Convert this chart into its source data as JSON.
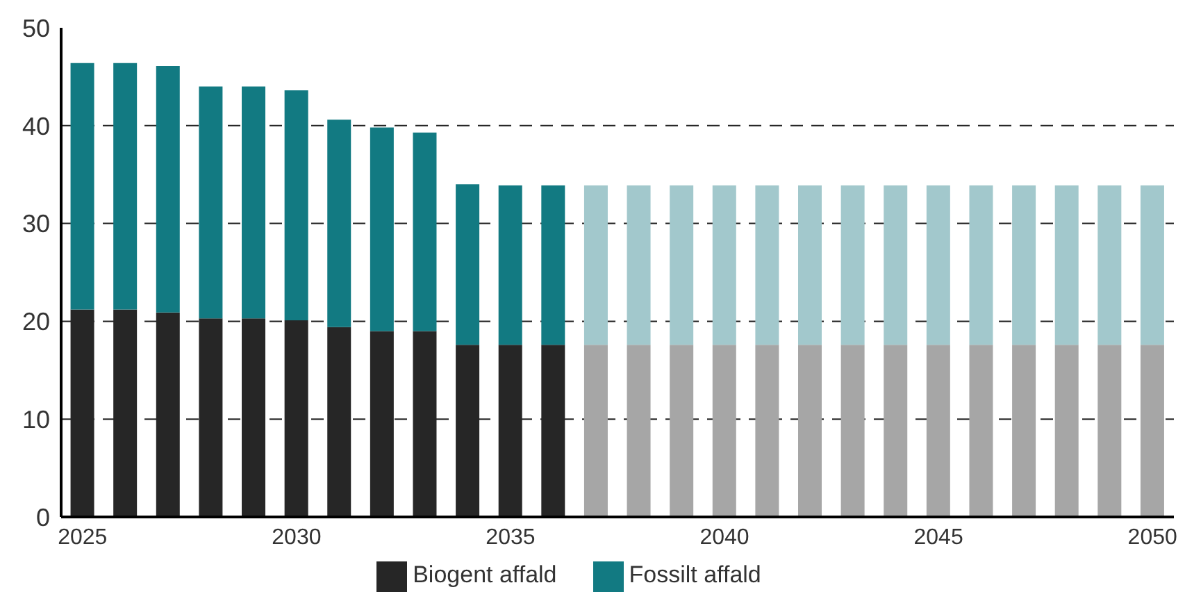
{
  "chart_data": {
    "type": "bar",
    "stacked": true,
    "categories": [
      "2025",
      null,
      null,
      null,
      null,
      "2030",
      null,
      null,
      null,
      null,
      "2035",
      null,
      null,
      null,
      null,
      "2040",
      null,
      null,
      null,
      null,
      "2045",
      null,
      null,
      null,
      null,
      "2050"
    ],
    "series": [
      {
        "name": "Biogent affald",
        "color": "#262626",
        "colors": [
          "#262626",
          "#262626",
          "#262626",
          "#262626",
          "#262626",
          "#262626",
          "#262626",
          "#262626",
          "#262626",
          "#262626",
          "#262626",
          "#262626",
          "#a6a6a6",
          "#a6a6a6",
          "#a6a6a6",
          "#a6a6a6",
          "#a6a6a6",
          "#a6a6a6",
          "#a6a6a6",
          "#a6a6a6",
          "#a6a6a6",
          "#a6a6a6",
          "#a6a6a6",
          "#a6a6a6",
          "#a6a6a6",
          "#a6a6a6"
        ],
        "values": [
          21.2,
          21.2,
          20.9,
          20.3,
          20.3,
          20.1,
          19.4,
          19.0,
          19.0,
          17.6,
          17.6,
          17.6,
          17.6,
          17.6,
          17.6,
          17.6,
          17.6,
          17.6,
          17.6,
          17.6,
          17.6,
          17.6,
          17.6,
          17.6,
          17.6,
          17.6
        ]
      },
      {
        "name": "Fossilt affald",
        "color": "#127a82",
        "colors": [
          "#127a82",
          "#127a82",
          "#127a82",
          "#127a82",
          "#127a82",
          "#127a82",
          "#127a82",
          "#127a82",
          "#127a82",
          "#127a82",
          "#127a82",
          "#127a82",
          "#a2c8cc",
          "#a2c8cc",
          "#a2c8cc",
          "#a2c8cc",
          "#a2c8cc",
          "#a2c8cc",
          "#a2c8cc",
          "#a2c8cc",
          "#a2c8cc",
          "#a2c8cc",
          "#a2c8cc",
          "#a2c8cc",
          "#a2c8cc",
          "#a2c8cc"
        ],
        "values": [
          25.2,
          25.2,
          25.2,
          23.7,
          23.7,
          23.5,
          21.2,
          20.8,
          20.3,
          16.4,
          16.3,
          16.3,
          16.3,
          16.3,
          16.3,
          16.3,
          16.3,
          16.3,
          16.3,
          16.3,
          16.3,
          16.3,
          16.3,
          16.3,
          16.3,
          16.3
        ]
      }
    ],
    "ylim": [
      0,
      50
    ],
    "yticks": [
      0,
      10,
      20,
      30,
      40,
      50
    ],
    "grid": "y",
    "legend": "bottom"
  }
}
